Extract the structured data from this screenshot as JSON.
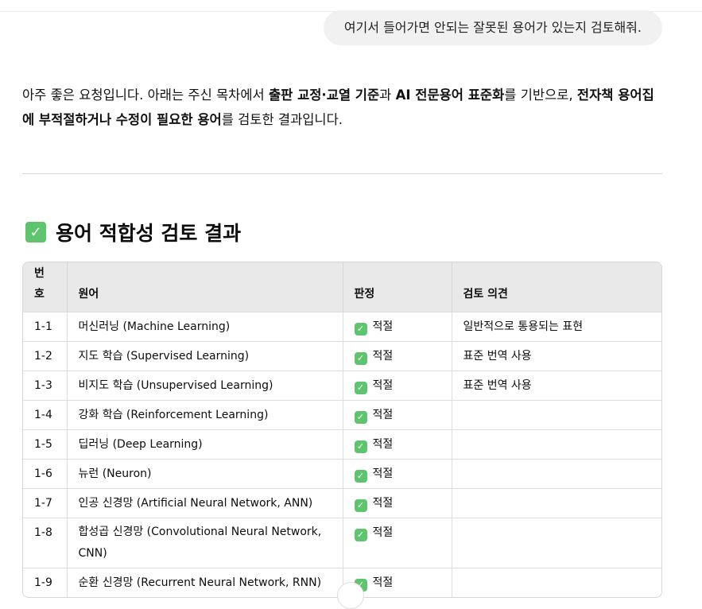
{
  "user_message": "여기서 들어가면 안되는 잘못된 용어가 있는지 검토해줘.",
  "response": {
    "intro": [
      {
        "text": "아주 좋은 요청입니다. 아래는 주신 목차에서 ",
        "bold": false
      },
      {
        "text": "출판 교정·교열 기준",
        "bold": true
      },
      {
        "text": "과 ",
        "bold": false
      },
      {
        "text": "AI 전문용어 표준화",
        "bold": true
      },
      {
        "text": "를 기반으로, ",
        "bold": false
      },
      {
        "text": "전자책 용어집에 부적절하거나 수정이 필요한 용어",
        "bold": true
      },
      {
        "text": "를 검토한 결과입니다.",
        "bold": false
      }
    ],
    "heading": "용어 적합성 검토 결과",
    "heading_icon": "green-check-box-icon",
    "accent_color": "#5fc46e",
    "table": {
      "headers": [
        "번호",
        "원어",
        "판정",
        "검토 의견"
      ],
      "rows": [
        {
          "no": "1-1",
          "term": "머신러닝 (Machine Learning)",
          "verdict": "적절",
          "comment": "일반적으로 통용되는 표현"
        },
        {
          "no": "1-2",
          "term": "지도 학습 (Supervised Learning)",
          "verdict": "적절",
          "comment": "표준 번역 사용"
        },
        {
          "no": "1-3",
          "term": "비지도 학습 (Unsupervised Learning)",
          "verdict": "적절",
          "comment": "표준 번역 사용"
        },
        {
          "no": "1-4",
          "term": "강화 학습 (Reinforcement Learning)",
          "verdict": "적절",
          "comment": ""
        },
        {
          "no": "1-5",
          "term": "딥러닝 (Deep Learning)",
          "verdict": "적절",
          "comment": ""
        },
        {
          "no": "1-6",
          "term": "뉴런 (Neuron)",
          "verdict": "적절",
          "comment": ""
        },
        {
          "no": "1-7",
          "term": "인공 신경망 (Artificial Neural Network, ANN)",
          "verdict": "적절",
          "comment": ""
        },
        {
          "no": "1-8",
          "term": "합성곱 신경망 (Convolutional Neural Network, CNN)",
          "verdict": "적절",
          "comment": ""
        },
        {
          "no": "1-9",
          "term": "순환 신경망 (Recurrent Neural Network, RNN)",
          "verdict": "적절",
          "comment": ""
        }
      ]
    }
  }
}
